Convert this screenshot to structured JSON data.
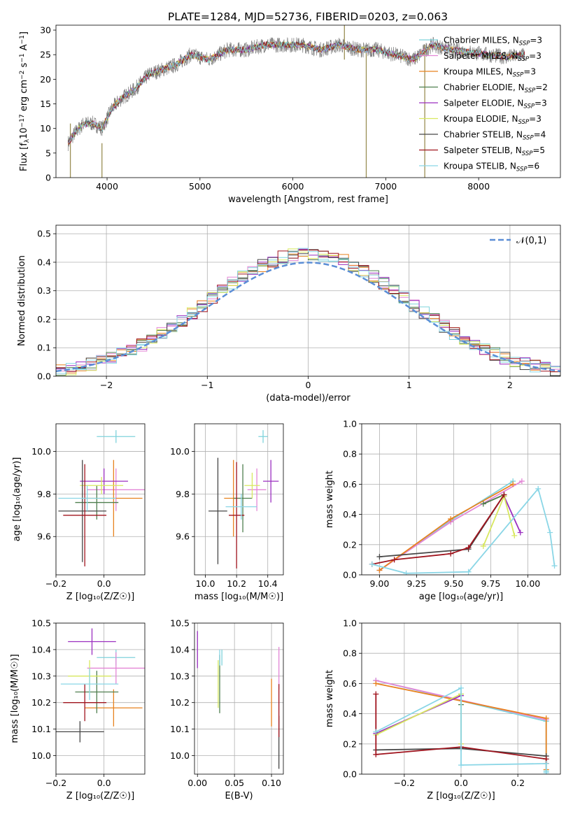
{
  "figure": {
    "title": "PLATE=1284, MJD=52736, FIBERID=0203, z=0.063"
  },
  "palette": [
    "#7fd3dc",
    "#e386d6",
    "#e8821f",
    "#4f7f4f",
    "#9b2fc0",
    "#d8e85f",
    "#474747",
    "#a0141e",
    "#8ad6e6"
  ],
  "legend_entries": [
    [
      "Chabrier MILES, N",
      "SSP",
      "=3"
    ],
    [
      "Salpeter MILES, N",
      "SSP",
      "=3"
    ],
    [
      "Kroupa MILES, N",
      "SSP",
      "=3"
    ],
    [
      "Chabrier ELODIE, N",
      "SSP",
      "=2"
    ],
    [
      "Salpeter ELODIE, N",
      "SSP",
      "=3"
    ],
    [
      "Kroupa ELODIE, N",
      "SSP",
      "=3"
    ],
    [
      "Chabrier STELIB, N",
      "SSP",
      "=4"
    ],
    [
      "Salpeter STELIB, N",
      "SSP",
      "=5"
    ],
    [
      "Kroupa STELIB, N",
      "SSP",
      "=6"
    ]
  ],
  "chart_data": [
    {
      "id": "spectrum",
      "type": "line",
      "xlabel": "wavelength [Angstrom, rest frame]",
      "ylabel_parts": [
        "Flux [f",
        "λ",
        "10",
        "−17",
        " erg cm",
        "−2",
        " s",
        "−1",
        " A",
        "−1",
        "]"
      ],
      "xlim": [
        3450,
        8880
      ],
      "ylim": [
        0,
        31
      ],
      "xticks": [
        4000,
        5000,
        6000,
        7000,
        8000
      ],
      "yticks": [
        0,
        5,
        10,
        15,
        20,
        25,
        30
      ],
      "grid": false,
      "legend_position": "right",
      "data_color": "#808080",
      "continuum": {
        "x": [
          3580,
          3650,
          3750,
          3850,
          3950,
          4050,
          4150,
          4300,
          4450,
          4600,
          4750,
          4900,
          5100,
          5300,
          5500,
          5700,
          5900,
          6100,
          6300,
          6500,
          6700,
          6900,
          7100,
          7300,
          7500,
          7700,
          7900,
          8100,
          8300,
          8500
        ],
        "y": [
          7,
          9,
          11,
          11,
          10,
          14,
          16,
          18,
          21,
          22,
          23,
          25,
          24,
          26,
          26,
          27,
          27,
          27,
          26,
          27,
          26,
          26,
          25,
          24,
          27,
          26,
          25.5,
          25,
          24.5,
          25
        ]
      },
      "spikes": [
        {
          "x": 3605,
          "ymin": 0,
          "ymax": 11
        },
        {
          "x": 3945,
          "ymin": 0,
          "ymax": 7
        },
        {
          "x": 6555,
          "ymin": 24,
          "ymax": 31
        },
        {
          "x": 6790,
          "ymin": 0,
          "ymax": 26
        },
        {
          "x": 7420,
          "ymin": 0,
          "ymax": 27
        }
      ]
    },
    {
      "id": "residuals",
      "type": "line",
      "xlabel": "(data-model)/error",
      "ylabel": "Normed distribution",
      "xlim": [
        -2.5,
        2.5
      ],
      "ylim": [
        0,
        0.53
      ],
      "xticks": [
        -2,
        -1,
        0,
        1,
        2
      ],
      "yticks": [
        0,
        0.1,
        0.2,
        0.3,
        0.4,
        0.5
      ],
      "grid": true,
      "legend": "𝒩(0,1)",
      "legend_position": "top-right",
      "gaussian": {
        "mu": 0,
        "sigma": 1
      },
      "bin_width": 0.1
    },
    {
      "id": "age_vs_Z",
      "type": "scatter",
      "xlabel": "Z [log₁₀(Z/Z☉)]",
      "ylabel": "age  [log₁₀(age/yr)]",
      "xlim": [
        -0.2,
        0.17
      ],
      "ylim": [
        9.42,
        10.13
      ],
      "xticks": [
        -0.2,
        0.0
      ],
      "yticks": [
        9.6,
        9.8,
        10.0
      ],
      "grid": true,
      "points": [
        {
          "x": 0.05,
          "y": 10.07,
          "xerr": 0.08,
          "yerr": 0.03
        },
        {
          "x": 0.05,
          "y": 9.82,
          "xerr": 0.12,
          "yerr": 0.1
        },
        {
          "x": 0.04,
          "y": 9.78,
          "xerr": 0.12,
          "yerr": 0.18
        },
        {
          "x": -0.03,
          "y": 9.76,
          "xerr": 0.09,
          "yerr": 0.08
        },
        {
          "x": 0.0,
          "y": 9.86,
          "xerr": 0.1,
          "yerr": 0.06
        },
        {
          "x": -0.01,
          "y": 9.84,
          "xerr": 0.09,
          "yerr": 0.04
        },
        {
          "x": -0.09,
          "y": 9.72,
          "xerr": 0.1,
          "yerr": 0.24
        },
        {
          "x": -0.08,
          "y": 9.7,
          "xerr": 0.09,
          "yerr": 0.24
        },
        {
          "x": -0.07,
          "y": 9.78,
          "xerr": 0.12,
          "yerr": 0.06
        }
      ]
    },
    {
      "id": "age_vs_mass",
      "type": "scatter",
      "xlabel": "mass [log₁₀(M/M☉)]",
      "ylabel": "",
      "xlim": [
        9.93,
        10.5
      ],
      "ylim": [
        9.42,
        10.13
      ],
      "xticks": [
        10.0,
        10.2,
        10.4
      ],
      "yticks": [
        9.6,
        9.8,
        10.0
      ],
      "grid": true,
      "points": [
        {
          "x": 10.37,
          "y": 10.07,
          "xerr": 0.03,
          "yerr": 0.03
        },
        {
          "x": 10.33,
          "y": 9.82,
          "xerr": 0.06,
          "yerr": 0.1
        },
        {
          "x": 10.18,
          "y": 9.78,
          "xerr": 0.06,
          "yerr": 0.18
        },
        {
          "x": 10.24,
          "y": 9.78,
          "xerr": 0.06,
          "yerr": 0.16
        },
        {
          "x": 10.42,
          "y": 9.86,
          "xerr": 0.05,
          "yerr": 0.1
        },
        {
          "x": 10.3,
          "y": 9.84,
          "xerr": 0.05,
          "yerr": 0.06
        },
        {
          "x": 10.08,
          "y": 9.72,
          "xerr": 0.06,
          "yerr": 0.25
        },
        {
          "x": 10.2,
          "y": 9.7,
          "xerr": 0.05,
          "yerr": 0.25
        },
        {
          "x": 10.23,
          "y": 9.74,
          "xerr": 0.1,
          "yerr": 0.06
        }
      ]
    },
    {
      "id": "weight_vs_age",
      "type": "line",
      "xlabel": "age  [log₁₀(age/yr)]",
      "ylabel": "mass weight",
      "xlim": [
        8.88,
        10.22
      ],
      "ylim": [
        0,
        1.0
      ],
      "xticks": [
        9.0,
        9.25,
        9.5,
        9.75,
        10.0
      ],
      "yticks": [
        0,
        0.2,
        0.4,
        0.6,
        0.8,
        1.0
      ],
      "grid": true,
      "series": [
        {
          "x": [
            9.0,
            9.48,
            9.9
          ],
          "y": [
            0.03,
            0.36,
            0.62
          ]
        },
        {
          "x": [
            9.0,
            9.48,
            9.96
          ],
          "y": [
            0.03,
            0.35,
            0.62
          ]
        },
        {
          "x": [
            9.0,
            9.48,
            9.9
          ],
          "y": [
            0.03,
            0.37,
            0.6
          ]
        },
        {
          "x": [
            9.7,
            9.84
          ],
          "y": [
            0.47,
            0.53
          ]
        },
        {
          "x": [
            9.84,
            9.95
          ],
          "y": [
            0.52,
            0.28
          ]
        },
        {
          "x": [
            9.7,
            9.84,
            9.91
          ],
          "y": [
            0.19,
            0.52,
            0.26
          ]
        },
        {
          "x": [
            9.0,
            9.6,
            9.84
          ],
          "y": [
            0.12,
            0.17,
            0.53
          ]
        },
        {
          "x": [
            8.95,
            9.1,
            9.48,
            9.6,
            9.84
          ],
          "y": [
            0.07,
            0.1,
            0.14,
            0.18,
            0.53
          ]
        },
        {
          "x": [
            8.95,
            9.18,
            9.6,
            10.07,
            10.15,
            10.18
          ],
          "y": [
            0.07,
            0.01,
            0.02,
            0.57,
            0.28,
            0.06
          ]
        }
      ]
    },
    {
      "id": "mass_vs_Z",
      "type": "scatter",
      "xlabel": "Z [log₁₀(Z/Z☉)]",
      "ylabel": "mass [log₁₀(M/M☉)]",
      "xlim": [
        -0.2,
        0.17
      ],
      "ylim": [
        9.93,
        10.5
      ],
      "xticks": [
        -0.2,
        0.0
      ],
      "yticks": [
        10.0,
        10.1,
        10.2,
        10.3,
        10.4,
        10.5
      ],
      "grid": true,
      "points": [
        {
          "x": 0.05,
          "y": 10.37,
          "xerr": 0.08,
          "yerr": 0.03
        },
        {
          "x": 0.05,
          "y": 10.33,
          "xerr": 0.12,
          "yerr": 0.06
        },
        {
          "x": 0.04,
          "y": 10.18,
          "xerr": 0.12,
          "yerr": 0.07
        },
        {
          "x": -0.03,
          "y": 10.24,
          "xerr": 0.09,
          "yerr": 0.08
        },
        {
          "x": -0.05,
          "y": 10.43,
          "xerr": 0.1,
          "yerr": 0.05
        },
        {
          "x": -0.06,
          "y": 10.3,
          "xerr": 0.09,
          "yerr": 0.06
        },
        {
          "x": -0.1,
          "y": 10.09,
          "xerr": 0.1,
          "yerr": 0.04
        },
        {
          "x": -0.08,
          "y": 10.2,
          "xerr": 0.09,
          "yerr": 0.07
        },
        {
          "x": -0.06,
          "y": 10.27,
          "xerr": 0.12,
          "yerr": 0.06
        }
      ]
    },
    {
      "id": "mass_vs_EBV",
      "type": "scatter",
      "xlabel": "E(B-V)",
      "ylabel": "",
      "xlim": [
        -0.004,
        0.116
      ],
      "ylim": [
        9.93,
        10.5
      ],
      "xticks": [
        0.0,
        0.05,
        0.1
      ],
      "yticks": [
        10.0,
        10.1,
        10.2,
        10.3,
        10.4,
        10.5
      ],
      "grid": true,
      "points": [
        {
          "x": 0.033,
          "y": 10.37,
          "xerr": 0,
          "yerr": 0.03
        },
        {
          "x": 0.11,
          "y": 10.33,
          "xerr": 0,
          "yerr": 0.08
        },
        {
          "x": 0.1,
          "y": 10.2,
          "xerr": 0,
          "yerr": 0.09
        },
        {
          "x": 0.03,
          "y": 10.27,
          "xerr": 0,
          "yerr": 0.11
        },
        {
          "x": 0.0,
          "y": 10.4,
          "xerr": 0,
          "yerr": 0.07
        },
        {
          "x": 0.028,
          "y": 10.27,
          "xerr": 0,
          "yerr": 0.09
        },
        {
          "x": 0.11,
          "y": 10.05,
          "xerr": 0,
          "yerr": 0.1
        },
        {
          "x": 0.11,
          "y": 10.17,
          "xerr": 0,
          "yerr": 0.1
        },
        {
          "x": 0.03,
          "y": 10.37,
          "xerr": 0,
          "yerr": 0.03
        }
      ]
    },
    {
      "id": "weight_vs_Z",
      "type": "line",
      "xlabel": "Z [log₁₀(Z/Z☉)]",
      "ylabel": "mass weight",
      "xlim": [
        -0.35,
        0.35
      ],
      "ylim": [
        0,
        1.0
      ],
      "xticks": [
        -0.2,
        0.0,
        0.2
      ],
      "yticks": [
        0,
        0.2,
        0.4,
        0.6,
        0.8,
        1.0
      ],
      "grid": true,
      "series": [
        {
          "x": [
            -0.3,
            0.3,
            0.3
          ],
          "y": [
            0.62,
            0.35,
            0.02
          ]
        },
        {
          "x": [
            -0.3,
            0.3
          ],
          "y": [
            0.62,
            0.36
          ]
        },
        {
          "x": [
            -0.3,
            0.3,
            0.3
          ],
          "y": [
            0.6,
            0.37,
            0.03
          ]
        },
        {
          "x": [
            0.0,
            0.0
          ],
          "y": [
            0.46,
            0.53
          ]
        },
        {
          "x": [
            -0.3,
            0.0,
            0.0
          ],
          "y": [
            0.27,
            0.52,
            0.2
          ]
        },
        {
          "x": [
            -0.3,
            0.0,
            0.0
          ],
          "y": [
            0.26,
            0.53,
            0.2
          ]
        },
        {
          "x": [
            -0.3,
            0.0,
            0.3
          ],
          "y": [
            0.16,
            0.17,
            0.12
          ]
        },
        {
          "x": [
            -0.3,
            -0.3,
            0.0,
            0.3,
            0.3
          ],
          "y": [
            0.53,
            0.13,
            0.18,
            0.1,
            0.07
          ]
        },
        {
          "x": [
            -0.3,
            0.0,
            0.0,
            0.3,
            0.3
          ],
          "y": [
            0.28,
            0.57,
            0.06,
            0.07,
            0.01
          ]
        }
      ]
    }
  ]
}
